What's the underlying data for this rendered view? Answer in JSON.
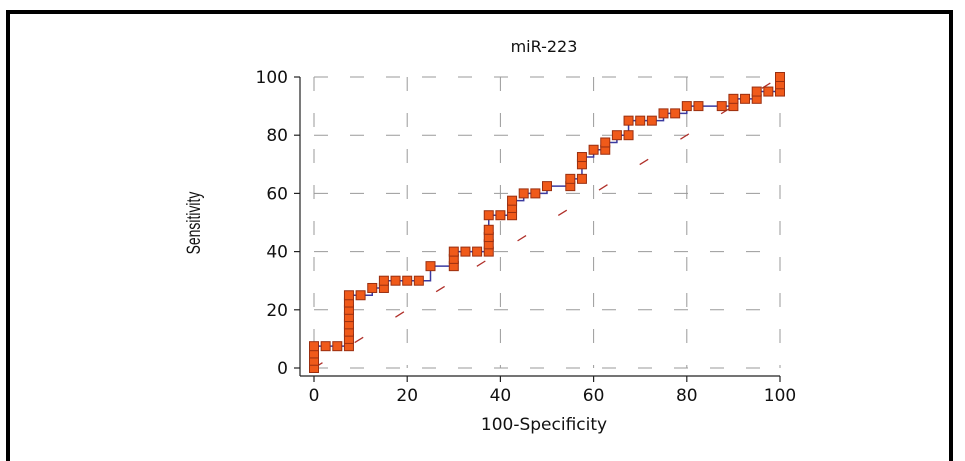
{
  "chart_data": {
    "type": "line",
    "title": "miR-223",
    "xlabel": "100-Specificity",
    "ylabel": "Sensitivity",
    "xlim": [
      0,
      100
    ],
    "ylim": [
      0,
      100
    ],
    "xticks": [
      "0",
      "20",
      "40",
      "60",
      "80",
      "100"
    ],
    "yticks": [
      "0",
      "20",
      "40",
      "60",
      "80",
      "100"
    ],
    "grid": true,
    "reference_line": {
      "from": [
        0,
        0
      ],
      "to": [
        100,
        100
      ],
      "style": "dashed",
      "color": "#b0302a"
    },
    "series": [
      {
        "marker_color": "#f05a1a",
        "line_color": "#3a3aa0",
        "points": [
          [
            0,
            0
          ],
          [
            0,
            2.5
          ],
          [
            0,
            5
          ],
          [
            0,
            7.5
          ],
          [
            2.5,
            7.5
          ],
          [
            5,
            7.5
          ],
          [
            7.5,
            7.5
          ],
          [
            7.5,
            10
          ],
          [
            7.5,
            12.5
          ],
          [
            7.5,
            15
          ],
          [
            7.5,
            17.5
          ],
          [
            7.5,
            20
          ],
          [
            7.5,
            22.5
          ],
          [
            7.5,
            25
          ],
          [
            10,
            25
          ],
          [
            12.5,
            27.5
          ],
          [
            15,
            27.5
          ],
          [
            15,
            30
          ],
          [
            17.5,
            30
          ],
          [
            20,
            30
          ],
          [
            22.5,
            30
          ],
          [
            25,
            35
          ],
          [
            30,
            35
          ],
          [
            30,
            37.5
          ],
          [
            30,
            40
          ],
          [
            32.5,
            40
          ],
          [
            35,
            40
          ],
          [
            37.5,
            40
          ],
          [
            37.5,
            42.5
          ],
          [
            37.5,
            45
          ],
          [
            37.5,
            47.5
          ],
          [
            37.5,
            52.5
          ],
          [
            40,
            52.5
          ],
          [
            42.5,
            52.5
          ],
          [
            42.5,
            55
          ],
          [
            42.5,
            57.5
          ],
          [
            45,
            60
          ],
          [
            47.5,
            60
          ],
          [
            50,
            62.5
          ],
          [
            55,
            62.5
          ],
          [
            55,
            65
          ],
          [
            57.5,
            65
          ],
          [
            57.5,
            70
          ],
          [
            57.5,
            72.5
          ],
          [
            60,
            75
          ],
          [
            62.5,
            75
          ],
          [
            62.5,
            77.5
          ],
          [
            65,
            80
          ],
          [
            67.5,
            80
          ],
          [
            67.5,
            85
          ],
          [
            70,
            85
          ],
          [
            72.5,
            85
          ],
          [
            75,
            87.5
          ],
          [
            77.5,
            87.5
          ],
          [
            80,
            90
          ],
          [
            82.5,
            90
          ],
          [
            87.5,
            90
          ],
          [
            90,
            90
          ],
          [
            90,
            92.5
          ],
          [
            92.5,
            92.5
          ],
          [
            95,
            92.5
          ],
          [
            95,
            95
          ],
          [
            97.5,
            95
          ],
          [
            100,
            95
          ],
          [
            100,
            97.5
          ],
          [
            100,
            100
          ]
        ]
      }
    ]
  }
}
